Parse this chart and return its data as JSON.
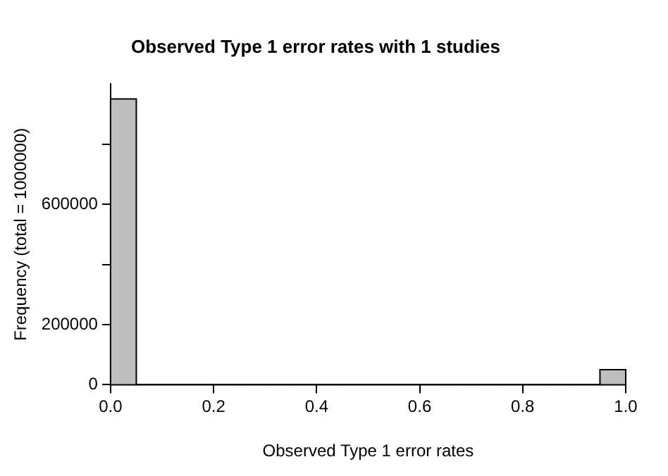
{
  "chart_data": {
    "type": "histogram",
    "title": "Observed Type 1 error rates with 1 studies",
    "xlabel": "Observed Type 1 error rates",
    "ylabel": "Frequency (total = 1000000)",
    "bins": [
      0,
      0.05,
      0.1,
      0.15,
      0.2,
      0.25,
      0.3,
      0.35,
      0.4,
      0.45,
      0.5,
      0.55,
      0.6,
      0.65,
      0.7,
      0.75,
      0.8,
      0.85,
      0.9,
      0.95,
      1
    ],
    "values": [
      950000,
      0,
      0,
      0,
      0,
      0,
      0,
      0,
      0,
      0,
      0,
      0,
      0,
      0,
      0,
      0,
      0,
      0,
      0,
      50000
    ],
    "color": "#bebebe",
    "xlim": [
      0,
      1
    ],
    "xticks": [
      {
        "value": 0,
        "label": "0.0"
      },
      {
        "value": 0.2,
        "label": "0.2"
      },
      {
        "value": 0.4,
        "label": "0.4"
      },
      {
        "value": 0.6,
        "label": "0.6"
      },
      {
        "value": 0.8,
        "label": "0.8"
      },
      {
        "value": 1,
        "label": "1.0"
      }
    ],
    "ylim": [
      0,
      1000000
    ],
    "yticks": [
      0,
      200000,
      {
        "value": 400000,
        "label": null
      },
      600000,
      {
        "value": 800000,
        "label": null
      }
    ],
    "grid": false,
    "legend": false
  }
}
